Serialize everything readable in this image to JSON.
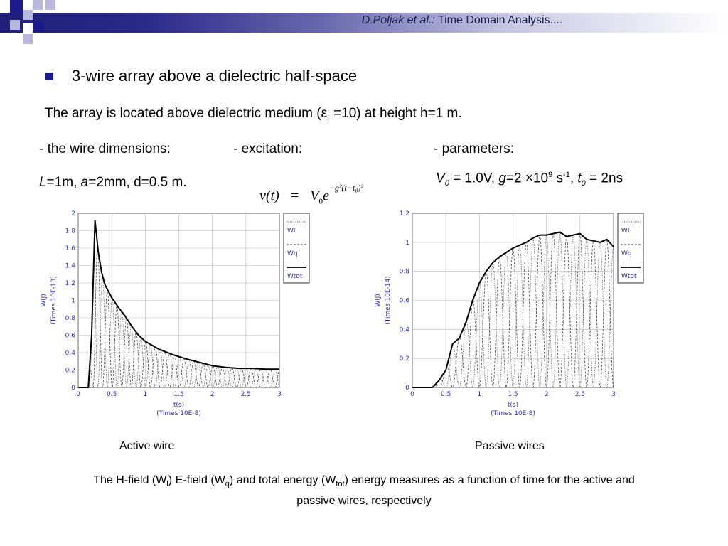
{
  "header": {
    "title_italic": "D.Poljak et al.:",
    "title_rest": " Time Domain Analysis...."
  },
  "bullet": {
    "text": "3-wire array above a dielectric half-space"
  },
  "desc": {
    "pre": "The array is located above dielectric medium (",
    "eps": "ε",
    "eps_sub": "r",
    "post": " =10) at height h=1 m."
  },
  "cols": {
    "dims_label": "- the wire dimensions:",
    "exc_label": "- excitation:",
    "params_label": "- parameters:",
    "dims_L": "L",
    "dims_L_val": "=1m, ",
    "dims_a": "a",
    "dims_rest": "=2mm, d=0.5 m.",
    "formula": "v(t)   =   V",
    "formula_sub": "0",
    "formula_e": "e",
    "formula_exp": "−g²(t−t₀)²",
    "p_V": "V",
    "p_V_sub": "0",
    "p_V_val": " = 1.0V, ",
    "p_g": "g",
    "p_g_val": "=2 ×10",
    "p_g_exp": "9",
    "p_s": " s",
    "p_s_exp": "-1",
    "p_comma": ", ",
    "p_t": "t",
    "p_t_sub": "0",
    "p_t_val": " = 2ns"
  },
  "captions": {
    "left": "Active wire",
    "right": "Passive wires"
  },
  "bottom": {
    "l1_a": "The H-field (W",
    "l1_b": "l",
    "l1_c": ") E-field (W",
    "l1_d": "q",
    "l1_e": ") and total energy (W",
    "l1_f": "tot",
    "l1_g": ") energy measures  as a function of time for the active and",
    "l2": "passive wires, respectively"
  },
  "chart_data": [
    {
      "type": "line",
      "title": "",
      "xlabel": "t(s)",
      "xlabel2": "(Times 10E-8)",
      "ylabel": "W(J)",
      "ylabel2": "(Times 10E-13)",
      "xlim": [
        0,
        3
      ],
      "ylim": [
        0,
        2
      ],
      "xticks": [
        "0",
        "0.5",
        "1",
        "1.5",
        "2",
        "2.5",
        "3"
      ],
      "yticks": [
        "0",
        "0.2",
        "0.4",
        "0.6",
        "0.8",
        "1",
        "1.2",
        "1.4",
        "1.6",
        "1.8",
        "2"
      ],
      "legend": [
        "Wl",
        "Wq",
        "Wtot"
      ],
      "grid": true,
      "series": [
        {
          "name": "Wtot",
          "x": [
            0,
            0.15,
            0.2,
            0.25,
            0.3,
            0.35,
            0.4,
            0.5,
            0.6,
            0.7,
            0.8,
            0.9,
            1.0,
            1.2,
            1.4,
            1.6,
            1.8,
            2.0,
            2.2,
            2.4,
            2.6,
            2.8,
            3.0
          ],
          "y": [
            0,
            0,
            0.6,
            1.92,
            1.55,
            1.32,
            1.18,
            1.03,
            0.92,
            0.82,
            0.7,
            0.6,
            0.53,
            0.44,
            0.38,
            0.33,
            0.29,
            0.25,
            0.23,
            0.22,
            0.22,
            0.21,
            0.21
          ]
        }
      ]
    },
    {
      "type": "line",
      "title": "",
      "xlabel": "t(s)",
      "xlabel2": "(Times 10E-8)",
      "ylabel": "W(J)",
      "ylabel2": "(Times 10E-14)",
      "xlim": [
        0,
        3
      ],
      "ylim": [
        0,
        1.2
      ],
      "xticks": [
        "0",
        "0.5",
        "1",
        "1.5",
        "2",
        "2.5",
        "3"
      ],
      "yticks": [
        "0",
        "0.2",
        "0.4",
        "0.6",
        "0.8",
        "1",
        "1.2"
      ],
      "legend": [
        "Wl",
        "Wq",
        "Wtot"
      ],
      "grid": true,
      "series": [
        {
          "name": "Wtot",
          "x": [
            0,
            0.3,
            0.4,
            0.5,
            0.6,
            0.7,
            0.8,
            0.9,
            1.0,
            1.1,
            1.2,
            1.3,
            1.4,
            1.5,
            1.6,
            1.7,
            1.8,
            1.9,
            2.0,
            2.1,
            2.2,
            2.3,
            2.4,
            2.5,
            2.6,
            2.7,
            2.8,
            2.9,
            3.0
          ],
          "y": [
            0,
            0,
            0.05,
            0.12,
            0.3,
            0.34,
            0.45,
            0.6,
            0.72,
            0.8,
            0.86,
            0.9,
            0.93,
            0.96,
            0.98,
            1.0,
            1.03,
            1.05,
            1.05,
            1.06,
            1.07,
            1.04,
            1.05,
            1.06,
            1.02,
            1.01,
            1.0,
            1.02,
            0.97
          ]
        }
      ]
    }
  ]
}
